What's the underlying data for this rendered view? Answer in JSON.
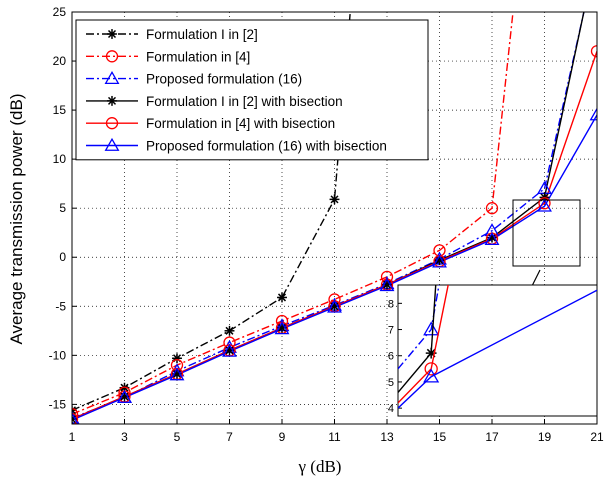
{
  "chart_data": {
    "type": "line",
    "title": "",
    "xlabel": "γ (dB)",
    "ylabel": "Average transmission power (dB)",
    "x": [
      1,
      3,
      5,
      7,
      9,
      11,
      13,
      15,
      17,
      19,
      21
    ],
    "xlim": [
      1,
      21
    ],
    "ylim": [
      -17,
      25
    ],
    "xticks": [
      "1",
      "3",
      "5",
      "7",
      "9",
      "11",
      "13",
      "15",
      "17",
      "19",
      "21"
    ],
    "yticks": [
      "-15",
      "-10",
      "-5",
      "0",
      "5",
      "10",
      "15",
      "20",
      "25"
    ],
    "grid": true,
    "legend": "top-left",
    "series": [
      {
        "name": "Formulation I in [2]",
        "color": "#000000",
        "dash": "dashdot",
        "marker": "star",
        "x": [
          1,
          3,
          5,
          7,
          9,
          11,
          11.6
        ],
        "y": [
          -15.6,
          -13.3,
          -10.3,
          -7.5,
          -4.1,
          5.9,
          25
        ]
      },
      {
        "name": "Formulation in [4]",
        "color": "#ff0000",
        "dash": "dashdot",
        "marker": "circle",
        "x": [
          1,
          3,
          5,
          7,
          9,
          11,
          13,
          15,
          17,
          17.8
        ],
        "y": [
          -16.0,
          -13.8,
          -11.0,
          -8.7,
          -6.5,
          -4.3,
          -2.0,
          0.7,
          5.0,
          25
        ]
      },
      {
        "name": "Proposed formulation (16)",
        "color": "#0000ff",
        "dash": "dashdot",
        "marker": "triangle",
        "x": [
          1,
          3,
          5,
          7,
          9,
          11,
          13,
          15,
          17,
          19,
          20.5
        ],
        "y": [
          -16.4,
          -14.3,
          -11.6,
          -9.2,
          -7.0,
          -4.9,
          -2.7,
          -0.2,
          2.7,
          7.0,
          25
        ]
      },
      {
        "name": "Formulation I in [2] with bisection",
        "color": "#000000",
        "dash": "solid",
        "marker": "star",
        "x": [
          1,
          3,
          5,
          7,
          9,
          11,
          13,
          15,
          17,
          19,
          20.5
        ],
        "y": [
          -16.5,
          -14.2,
          -11.9,
          -9.5,
          -7.2,
          -5.0,
          -2.8,
          -0.3,
          2.0,
          6.1,
          25
        ]
      },
      {
        "name": "Formulation in [4] with bisection",
        "color": "#ff0000",
        "dash": "solid",
        "marker": "circle",
        "x": [
          1,
          3,
          5,
          7,
          9,
          11,
          13,
          15,
          17,
          19,
          21
        ],
        "y": [
          -16.5,
          -14.2,
          -11.9,
          -9.5,
          -7.2,
          -5.0,
          -2.8,
          -0.4,
          1.9,
          5.5,
          21.0
        ]
      },
      {
        "name": "Proposed formulation (16) with bisection",
        "color": "#0000ff",
        "dash": "solid",
        "marker": "triangle",
        "x": [
          1,
          3,
          5,
          7,
          9,
          11,
          13,
          15,
          17,
          19,
          21
        ],
        "y": [
          -16.6,
          -14.3,
          -12.0,
          -9.6,
          -7.3,
          -5.1,
          -2.9,
          -0.5,
          1.8,
          5.2,
          14.5
        ]
      }
    ],
    "inset": {
      "yticks": [
        "4",
        "5",
        "6",
        "7",
        "8"
      ],
      "ylim": [
        3.7,
        8.7
      ],
      "xlim": [
        16.2,
        21
      ],
      "series_points": [
        {
          "color": "#0000ff",
          "dash": "dashdot",
          "marker": "triangle",
          "x": [
            16.2,
            17,
            19
          ],
          "y": [
            5.5,
            7.0,
            25
          ]
        },
        {
          "color": "#000000",
          "dash": "solid",
          "marker": "star",
          "x": [
            16.2,
            17,
            17.8
          ],
          "y": [
            4.6,
            6.1,
            25
          ]
        },
        {
          "color": "#ff0000",
          "dash": "solid",
          "marker": "circle",
          "x": [
            16.2,
            17,
            19.5
          ],
          "y": [
            4.2,
            5.5,
            25
          ]
        },
        {
          "color": "#0000ff",
          "dash": "solid",
          "marker": "triangle",
          "x": [
            16.2,
            17,
            21
          ],
          "y": [
            4.0,
            5.2,
            8.5
          ]
        }
      ]
    }
  }
}
